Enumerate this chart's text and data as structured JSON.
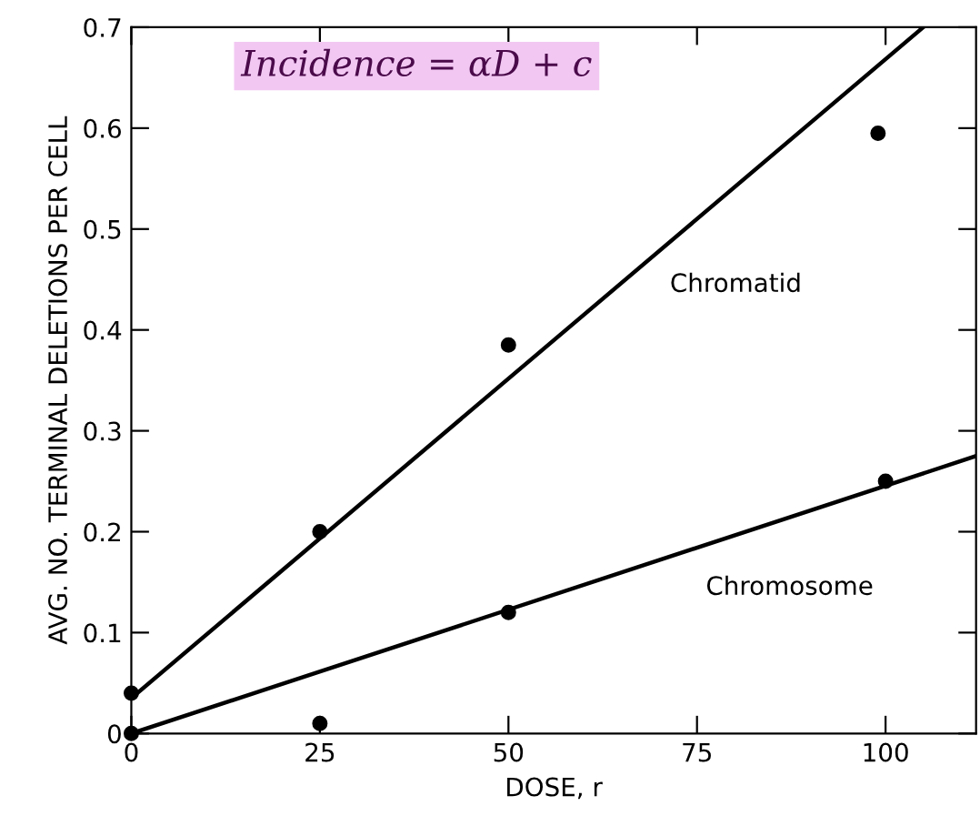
{
  "chart_data": {
    "type": "scatter",
    "xlabel": "DOSE, r",
    "ylabel": "AVG. NO. TERMINAL DELETIONS PER CELL",
    "xlim": [
      0,
      112
    ],
    "xticks": [
      0,
      25,
      50,
      75,
      100
    ],
    "ylim": [
      0,
      0.7
    ],
    "yticks": [
      0,
      0.1,
      0.2,
      0.3,
      0.4,
      0.5,
      0.6,
      0.7
    ],
    "grid": false,
    "series": [
      {
        "color": "#000000",
        "marker": "circle",
        "x": [
          0,
          25,
          50,
          99
        ],
        "values": [
          0.04,
          0.2,
          0.385,
          0.595
        ]
      },
      {
        "color": "#000000",
        "marker": "circle",
        "x": [
          0,
          25,
          50,
          100
        ],
        "values": [
          0,
          0.01,
          0.12,
          0.25
        ]
      },
      {
        "type": "line",
        "name": "Chromatid",
        "color": "#000000",
        "marker": "none",
        "line_style": "solid",
        "x": [
          0,
          105
        ],
        "values": [
          0.035,
          0.7
        ]
      },
      {
        "type": "line",
        "name": "Chromosome",
        "color": "#000000",
        "marker": "none",
        "line_style": "solid",
        "x": [
          0,
          112
        ],
        "values": [
          0,
          0.275
        ]
      }
    ],
    "annotations": [
      "Incidence = αD + c"
    ]
  }
}
